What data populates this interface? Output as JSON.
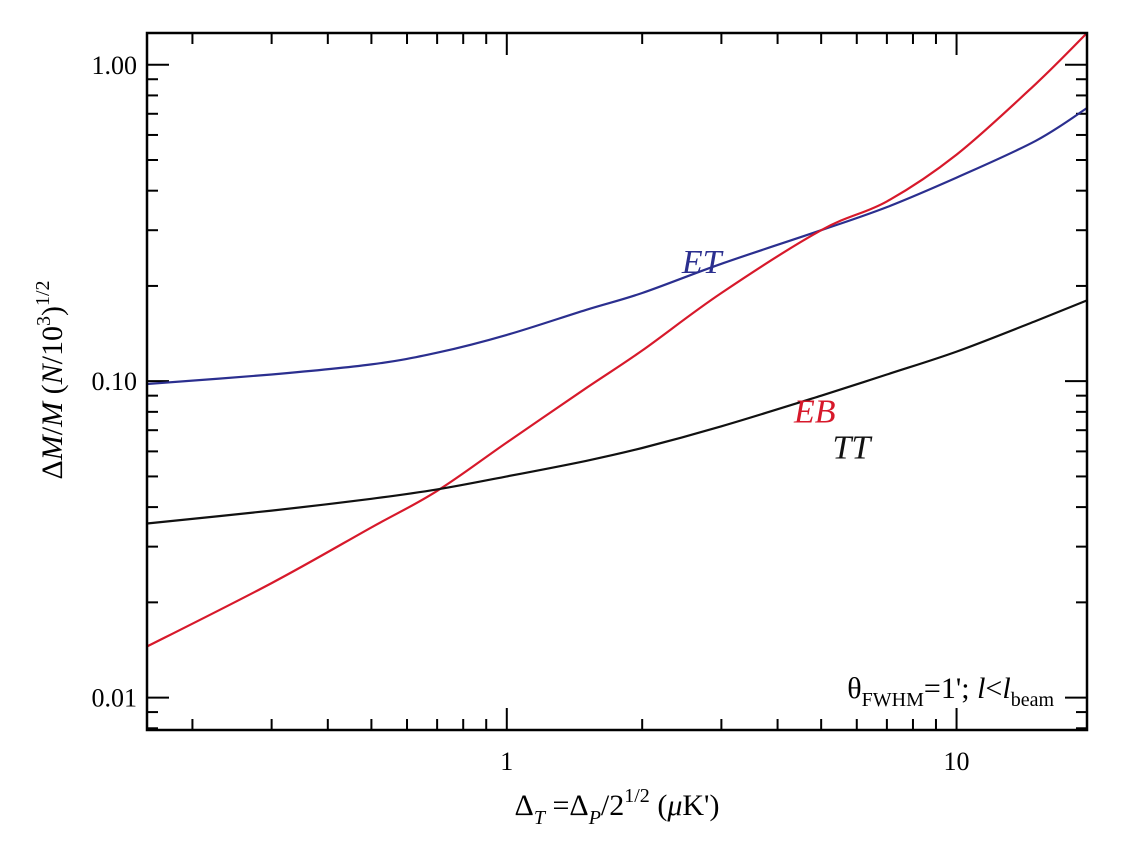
{
  "chart_data": {
    "type": "line",
    "x_scale": "log",
    "y_scale": "log",
    "xlim": [
      0.1585,
      19.5
    ],
    "ylim": [
      0.0079,
      1.26
    ],
    "xticks": [
      {
        "value": 1,
        "label": "1"
      },
      {
        "value": 10,
        "label": "10"
      }
    ],
    "yticks": [
      {
        "value": 0.01,
        "label": "0.01"
      },
      {
        "value": 0.1,
        "label": "0.10"
      },
      {
        "value": 1.0,
        "label": "1.00"
      }
    ],
    "xlabel": {
      "p1": "Δ",
      "p2": "T",
      "p3": " =Δ",
      "p4": "P",
      "p5": "/2",
      "p6": "1/2",
      "p7": " (",
      "p8": "μ",
      "p9": "K')"
    },
    "ylabel": {
      "p1": "Δ",
      "p2": "M",
      "p3": "/",
      "p4": "M",
      "p5": " (",
      "p6": "N",
      "p7": "/10",
      "p8": "3",
      "p9": ")",
      "p10": "1/2"
    },
    "annotation": {
      "p1": "θ",
      "p2": "FWHM",
      "p3": "=1'; ",
      "p4": "l",
      "p5": "<",
      "p6": "l",
      "p7": "beam"
    },
    "series": [
      {
        "name": "ET",
        "color": "#2b2f8f",
        "label_at": [
          2.45,
          0.22
        ],
        "x": [
          0.1585,
          0.3,
          0.5,
          0.7,
          1.0,
          1.5,
          2.0,
          3.0,
          5.0,
          7.0,
          10.0,
          15.0,
          19.5
        ],
        "y": [
          0.098,
          0.105,
          0.113,
          0.123,
          0.14,
          0.168,
          0.19,
          0.235,
          0.3,
          0.355,
          0.44,
          0.575,
          0.73
        ]
      },
      {
        "name": "EB",
        "color": "#d7192b",
        "label_at": [
          4.35,
          0.074
        ],
        "x": [
          0.1585,
          0.3,
          0.5,
          0.7,
          1.0,
          1.5,
          2.0,
          3.0,
          5.0,
          7.0,
          10.0,
          15.0,
          19.5
        ],
        "y": [
          0.0145,
          0.023,
          0.0345,
          0.045,
          0.064,
          0.095,
          0.125,
          0.19,
          0.3,
          0.37,
          0.52,
          0.87,
          1.26
        ]
      },
      {
        "name": "TT",
        "color": "#111111",
        "label_at": [
          5.3,
          0.057
        ],
        "x": [
          0.1585,
          0.3,
          0.5,
          0.7,
          1.0,
          1.5,
          2.0,
          3.0,
          5.0,
          7.0,
          10.0,
          15.0,
          19.5
        ],
        "y": [
          0.0355,
          0.039,
          0.0425,
          0.0455,
          0.05,
          0.056,
          0.0615,
          0.072,
          0.09,
          0.105,
          0.124,
          0.155,
          0.18
        ]
      }
    ]
  }
}
